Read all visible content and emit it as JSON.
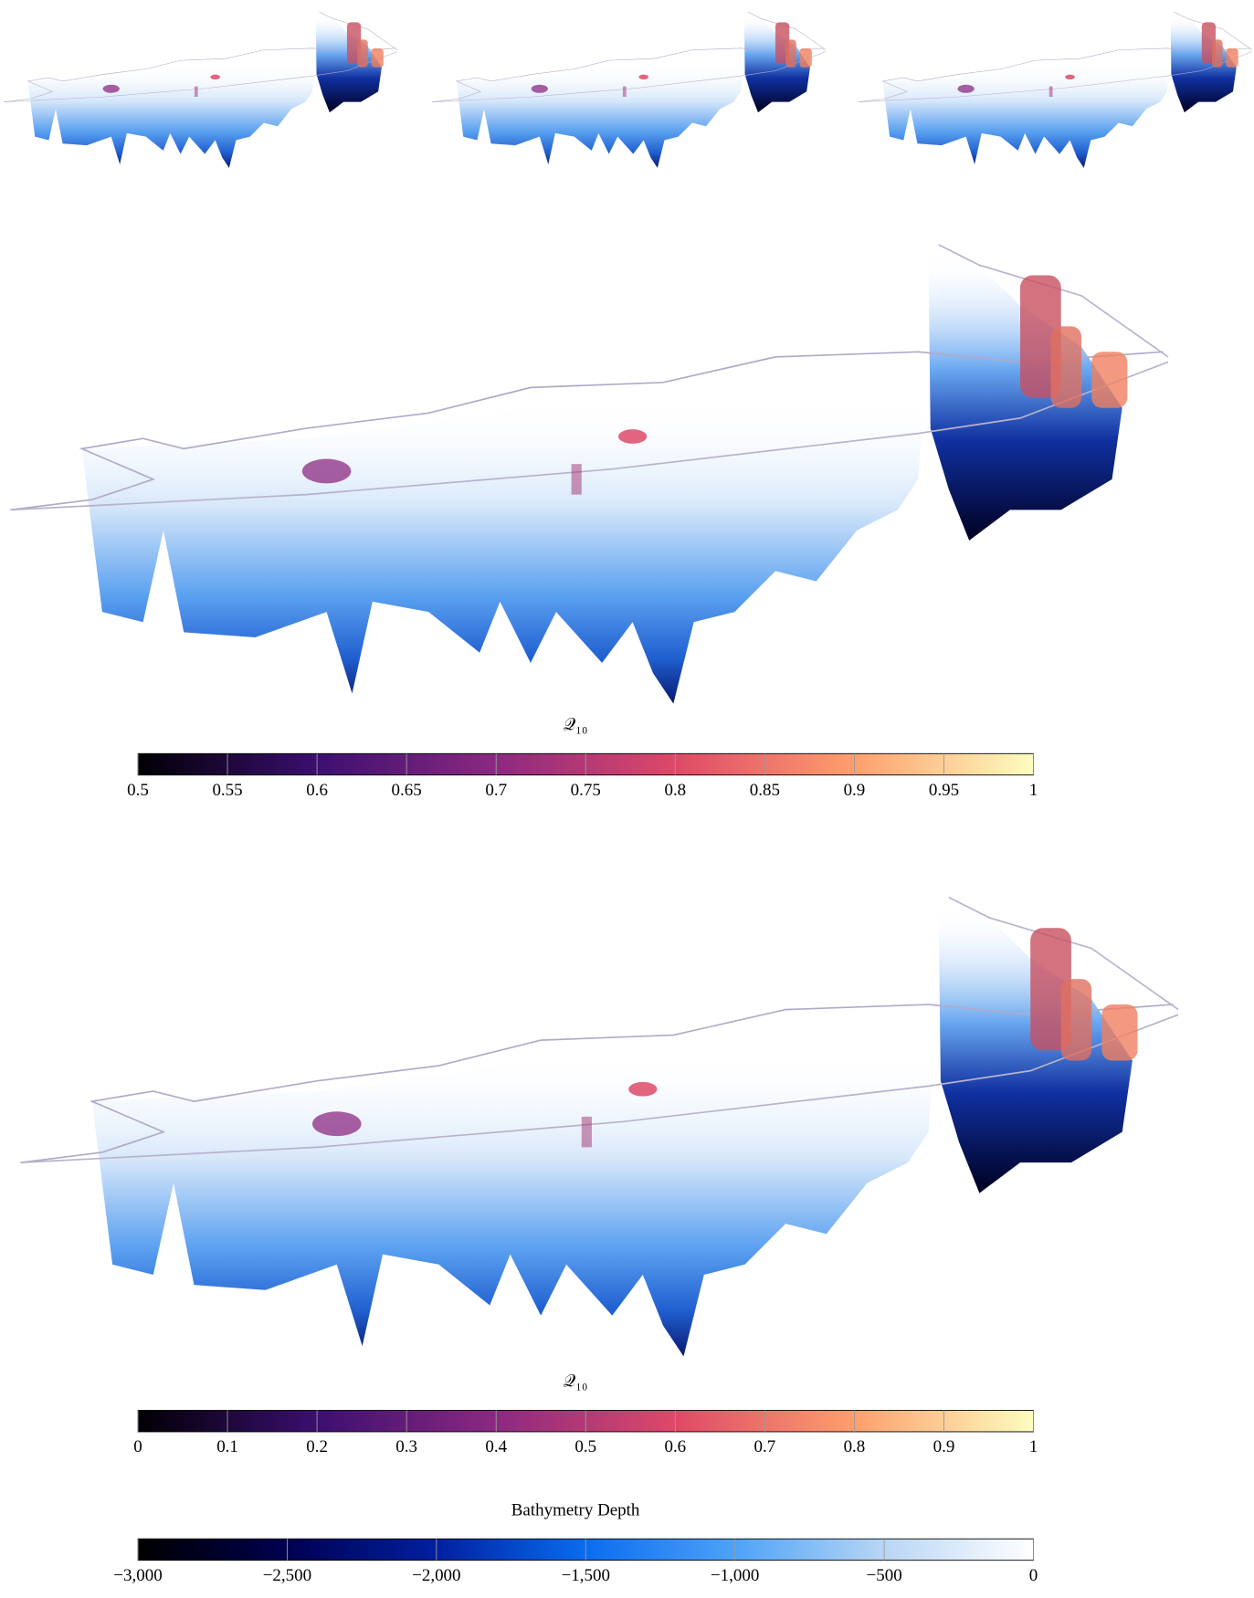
{
  "chart_data": [
    {
      "type": "colorbar",
      "title": "𝒬₁₀",
      "xlim": [
        0.5,
        1
      ],
      "xticks": [
        0.5,
        0.55,
        0.6,
        0.65,
        0.7,
        0.75,
        0.8,
        0.85,
        0.9,
        0.95,
        1
      ],
      "colors": [
        "#000004",
        "#3b0f70",
        "#8c2981",
        "#de4968",
        "#fe9f6d",
        "#fcfdbf"
      ]
    },
    {
      "type": "colorbar",
      "title": "𝒬₁₀",
      "xlim": [
        0,
        1
      ],
      "xticks": [
        0,
        0.1,
        0.2,
        0.3,
        0.4,
        0.5,
        0.6,
        0.7,
        0.8,
        0.9,
        1
      ],
      "colors": [
        "#000004",
        "#3b0f70",
        "#8c2981",
        "#de4968",
        "#fe9f6d",
        "#fcfdbf"
      ]
    },
    {
      "type": "colorbar",
      "title": "Bathymetry Depth",
      "xlim": [
        -3000,
        0
      ],
      "xticks": [
        {
          "value": -3000,
          "label": "−3,000"
        },
        {
          "value": -2500,
          "label": "−2,500"
        },
        {
          "value": -2000,
          "label": "−2,000"
        },
        {
          "value": -1500,
          "label": "−1,500"
        },
        {
          "value": -1000,
          "label": "−1,000"
        },
        {
          "value": -500,
          "label": "−500"
        },
        0
      ],
      "colors": [
        "#000000",
        "#000050",
        "#0020a0",
        "#0a6cf0",
        "#4ea2f8",
        "#b8d6f4",
        "#ffffff"
      ]
    }
  ]
}
